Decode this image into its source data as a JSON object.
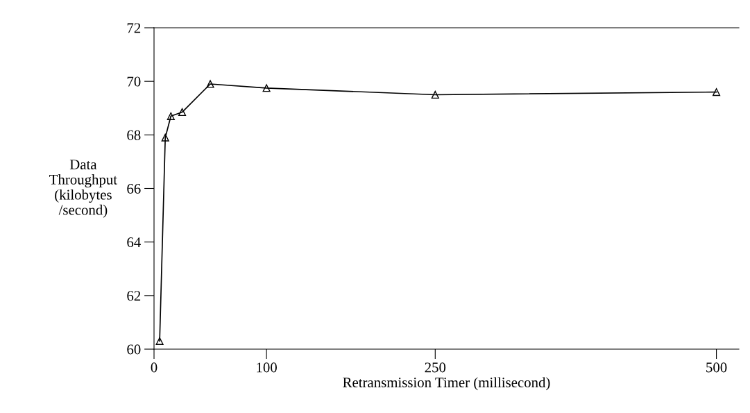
{
  "chart_data": {
    "type": "line",
    "xlabel": "Retransmission Timer (millisecond)",
    "ylabel": "Data\nThroughput\n(kilobytes\n/second)",
    "x": [
      5,
      10,
      15,
      25,
      50,
      100,
      250,
      500
    ],
    "series": [
      {
        "color": "#000000",
        "values": [
          60.3,
          67.9,
          68.7,
          68.85,
          69.9,
          69.75,
          69.5,
          69.6
        ]
      }
    ],
    "xlim": [
      0,
      520
    ],
    "xticks": [
      0,
      100,
      250,
      500
    ],
    "ylim": [
      60,
      72
    ],
    "yticks": [
      60,
      62,
      64,
      66,
      68,
      70,
      72
    ],
    "marker": "triangle",
    "line_style": "solid",
    "grid": false,
    "legend": false
  }
}
